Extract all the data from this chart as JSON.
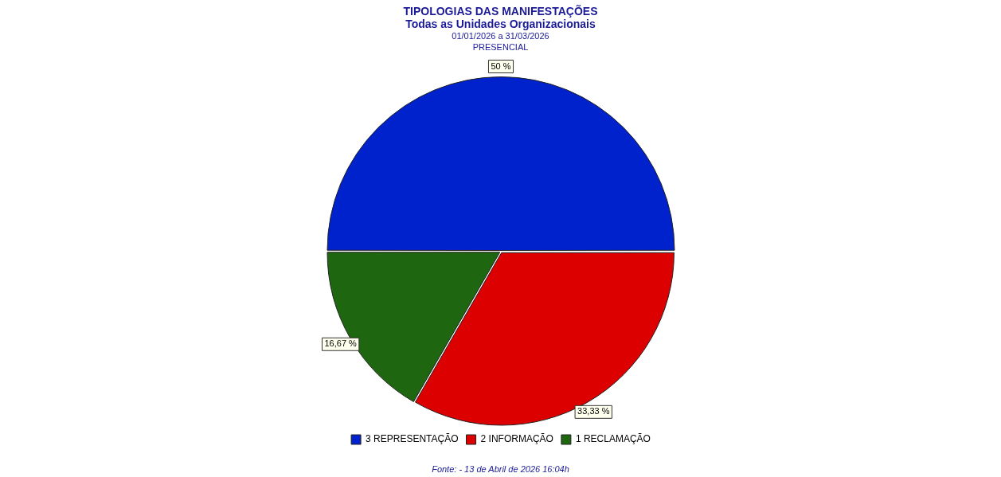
{
  "chart_data": {
    "type": "pie",
    "title": "TIPOLOGIAS DAS MANIFESTAÇÕES",
    "subtitle": "Todas as Unidades Organizacionais\n01/01/2026 a 31/03/2026\nPRESENCIAL",
    "categories": [
      "3 REPRESENTAÇÃO",
      "2 INFORMAÇÃO",
      "1 RECLAMAÇÃO"
    ],
    "values": [
      50,
      33.33,
      16.67
    ],
    "colors": [
      "#0022cc",
      "#dd0000",
      "#1e6610"
    ],
    "value_labels": [
      "50 %",
      "33,33 %",
      "16,67 %"
    ],
    "legend": "bottom",
    "annotations": [
      "Fonte: - 13 de Abril de 2026 16:04h"
    ]
  }
}
